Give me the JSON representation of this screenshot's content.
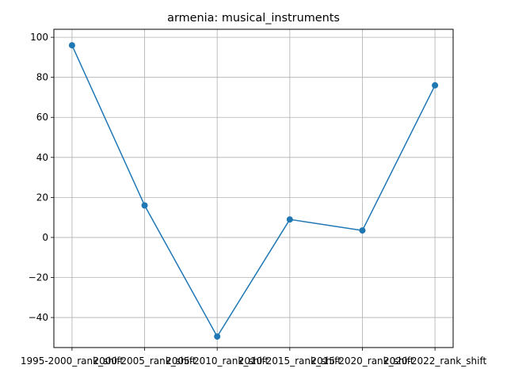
{
  "chart_data": {
    "type": "line",
    "title": "armenia: musical_instruments",
    "xlabel": "",
    "ylabel": "",
    "categories": [
      "1995-2000_rank_shift",
      "2000-2005_rank_shift",
      "2005-2010_rank_shift",
      "2010-2015_rank_shift",
      "2015-2020_rank_shift",
      "2020-2022_rank_shift"
    ],
    "series": [
      {
        "values": [
          96,
          16,
          -49.5,
          9,
          3.5,
          76
        ]
      }
    ],
    "ylim": [
      -55,
      104
    ],
    "y_ticks": [
      -40,
      -20,
      0,
      20,
      40,
      60,
      80,
      100
    ],
    "grid": true,
    "colors": {
      "line": "#1f77b4",
      "grid": "#b0b0b0",
      "axes": "#000000"
    }
  }
}
